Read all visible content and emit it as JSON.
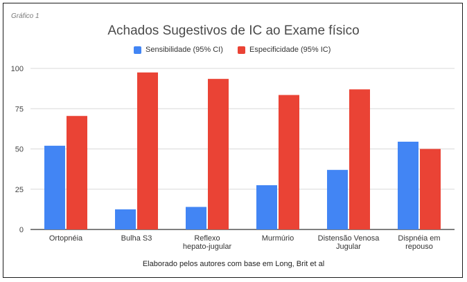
{
  "figure_label": "Gráfico 1",
  "caption": "Elaborado pelos autores com base em Long, Brit et al",
  "chart_data": {
    "type": "bar",
    "title": "Achados Sugestivos de IC ao Exame físico",
    "xlabel": "",
    "ylabel": "",
    "ylim": [
      0,
      100
    ],
    "yticks": [
      0,
      25,
      50,
      75,
      100
    ],
    "grid": true,
    "legend_position": "top",
    "categories": [
      [
        "Ortopnéia"
      ],
      [
        "Bulha S3"
      ],
      [
        "Reflexo",
        "hepato-jugular"
      ],
      [
        "Murmúrio"
      ],
      [
        "Distensão Venosa",
        "Jugular"
      ],
      [
        "Dispnéia em",
        "repouso"
      ]
    ],
    "series": [
      {
        "name": "Sensibilidade (95% CI)",
        "color": "#4285f4",
        "values": [
          52,
          12.5,
          14,
          27.5,
          37,
          54.5
        ]
      },
      {
        "name": "Especificidade (95% IC)",
        "color": "#ea4335",
        "values": [
          70.5,
          97.5,
          93.5,
          83.5,
          87,
          50
        ]
      }
    ]
  }
}
